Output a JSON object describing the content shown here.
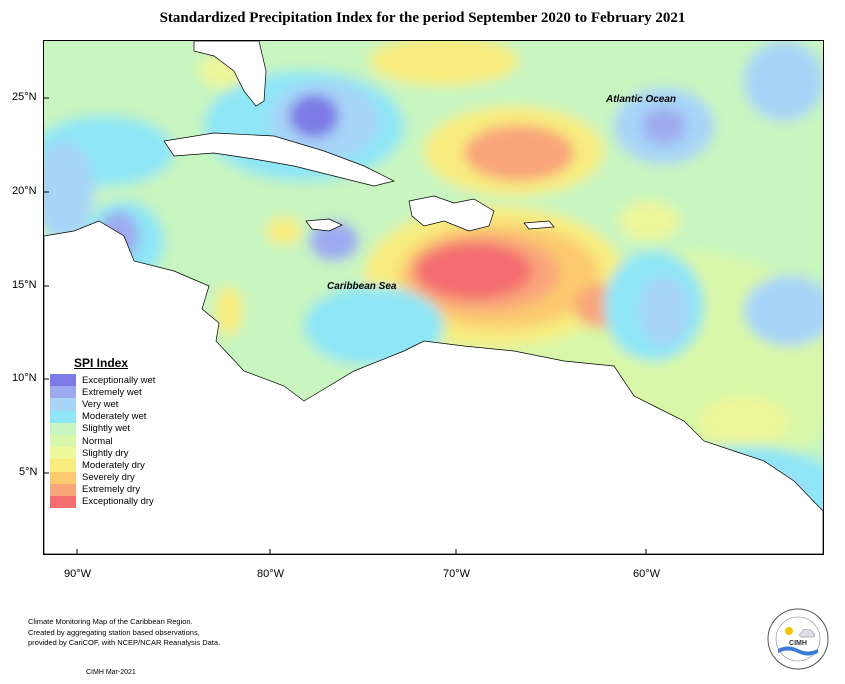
{
  "title": "Standardized Precipitation Index for the period September 2020 to February 2021",
  "map": {
    "lat_labels": [
      "25°N",
      "20°N",
      "15°N",
      "10°N",
      "5°N"
    ],
    "lon_labels": [
      "90°W",
      "80°W",
      "70°W",
      "60°W"
    ],
    "ocean_labels": {
      "atlantic": "Atlantic Ocean",
      "caribbean": "Caribbean Sea"
    }
  },
  "legend": {
    "title": "SPI Index",
    "items": [
      {
        "label": "Exceptionally wet",
        "color": "#7d7ae6"
      },
      {
        "label": "Extremely wet",
        "color": "#9eaaf0"
      },
      {
        "label": "Very wet",
        "color": "#a8d4f8"
      },
      {
        "label": "Moderately wet",
        "color": "#8ee6f6"
      },
      {
        "label": "Slightly wet",
        "color": "#c8f5c0"
      },
      {
        "label": "Normal",
        "color": "#d8f7a8"
      },
      {
        "label": "Slightly dry",
        "color": "#eef79a"
      },
      {
        "label": "Moderately dry",
        "color": "#f8ec7e"
      },
      {
        "label": "Severely dry",
        "color": "#fbc970"
      },
      {
        "label": "Extremely dry",
        "color": "#f9a57a"
      },
      {
        "label": "Exceptionally dry",
        "color": "#f46d70"
      }
    ]
  },
  "footer": {
    "lines": [
      "Climate Monitoring Map of the Caribbean Region.",
      "Created by aggregating station based observations,",
      "provided by CariCOF, with NCEP/NCAR Reanalysis Data."
    ],
    "credit": "CIMH Mar-2021"
  },
  "logo": {
    "text": "CIMH"
  }
}
